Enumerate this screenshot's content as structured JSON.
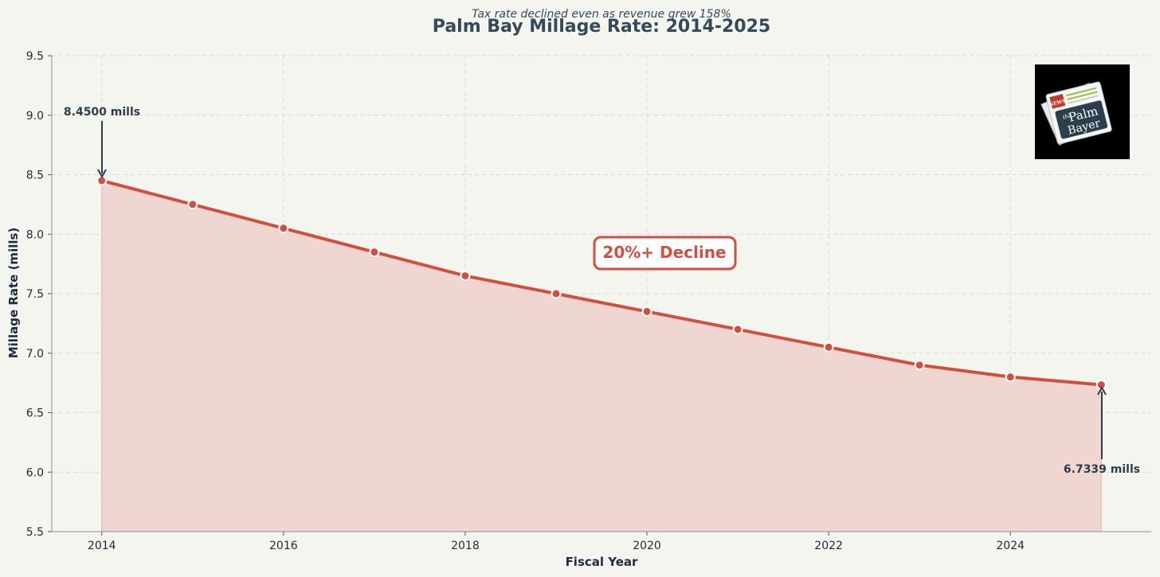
{
  "chart_data": {
    "type": "line",
    "title": "Palm Bay Millage Rate: 2014-2025",
    "subtitle": "Tax rate declined even as revenue grew 158%",
    "xlabel": "Fiscal Year",
    "ylabel": "Millage Rate (mills)",
    "xlim": [
      2013.45,
      2025.55
    ],
    "ylim": [
      5.5,
      9.5
    ],
    "xticks": [
      "2014",
      "2016",
      "2018",
      "2020",
      "2022",
      "2024"
    ],
    "yticks": [
      "5.5",
      "6.0",
      "6.5",
      "7.0",
      "7.5",
      "8.0",
      "8.5",
      "9.0",
      "9.5"
    ],
    "grid": true,
    "area_fill": true,
    "x": [
      2014,
      2015,
      2016,
      2017,
      2018,
      2019,
      2020,
      2021,
      2022,
      2023,
      2024,
      2025
    ],
    "series": [
      {
        "values": [
          8.45,
          8.25,
          8.05,
          7.85,
          7.65,
          7.5,
          7.35,
          7.2,
          7.05,
          6.9,
          6.8,
          6.7339
        ],
        "color": "#d05040"
      }
    ],
    "annotations": [
      {
        "text": "8.4500 mills",
        "x": 2014,
        "y": 8.45
      },
      {
        "text": "6.7339 mills",
        "x": 2025,
        "y": 6.7339
      },
      {
        "text": "20%+ Decline",
        "x": 2020.2,
        "y": 7.82
      }
    ]
  },
  "logo": {
    "badge": "NEWS",
    "line1": "the",
    "line2": "Palm",
    "line3": "Bayer"
  },
  "colors": {
    "background": "#f4f5ef",
    "line": "#d05040",
    "fill": "#f0d6d0",
    "text": "#34495a",
    "arrow": "#2c3e4a"
  }
}
